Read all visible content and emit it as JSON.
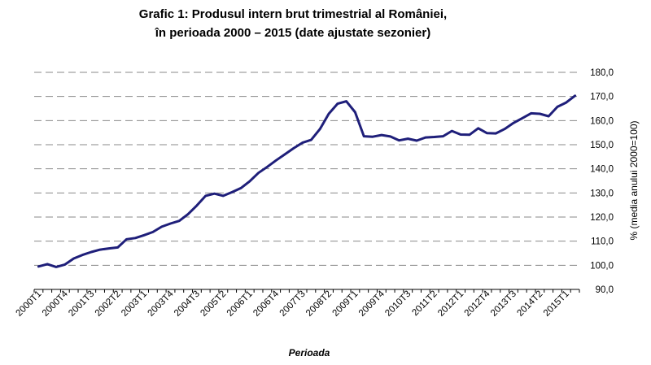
{
  "chart_data": {
    "type": "line",
    "title_line1": "Grafic 1: Produsul intern brut trimestrial al României,",
    "title_line2": "în perioada 2000 – 2015 (date ajustate sezonier)",
    "xlabel": "Perioada",
    "ylabel": "% (media anului 2000=100)",
    "ylim": [
      90,
      180
    ],
    "ytick_values": [
      90,
      100,
      110,
      120,
      130,
      140,
      150,
      160,
      170,
      180
    ],
    "ytick_labels": [
      "90,0",
      "100,0",
      "110,0",
      "120,0",
      "130,0",
      "140,0",
      "150,0",
      "160,0",
      "170,0",
      "180,0"
    ],
    "y_axis_position": "right",
    "grid": "horizontal dashed",
    "line_color": "#1f1f7a",
    "x_tick_labels": [
      "2000T1",
      "2000T4",
      "2001T3",
      "2002T2",
      "2003T1",
      "2003T4",
      "2004T3",
      "2005T2",
      "2006T1",
      "2006T4",
      "2007T3",
      "2008T2",
      "2009T1",
      "2009T4",
      "2010T3",
      "2011T2",
      "2012T1",
      "2012T4",
      "2013T3",
      "2014T2",
      "2015T1"
    ],
    "x": [
      "2000T1",
      "2000T2",
      "2000T3",
      "2000T4",
      "2001T1",
      "2001T2",
      "2001T3",
      "2001T4",
      "2002T1",
      "2002T2",
      "2002T3",
      "2002T4",
      "2003T1",
      "2003T2",
      "2003T3",
      "2003T4",
      "2004T1",
      "2004T2",
      "2004T3",
      "2004T4",
      "2005T1",
      "2005T2",
      "2005T3",
      "2005T4",
      "2006T1",
      "2006T2",
      "2006T3",
      "2006T4",
      "2007T1",
      "2007T2",
      "2007T3",
      "2007T4",
      "2008T1",
      "2008T2",
      "2008T3",
      "2008T4",
      "2009T1",
      "2009T2",
      "2009T3",
      "2009T4",
      "2010T1",
      "2010T2",
      "2010T3",
      "2010T4",
      "2011T1",
      "2011T2",
      "2011T3",
      "2011T4",
      "2012T1",
      "2012T2",
      "2012T3",
      "2012T4",
      "2013T1",
      "2013T2",
      "2013T3",
      "2013T4",
      "2014T1",
      "2014T2",
      "2014T3",
      "2014T4",
      "2015T1",
      "2015T2"
    ],
    "series": [
      {
        "values": [
          99.5,
          100.5,
          99.3,
          100.3,
          102.8,
          104.3,
          105.5,
          106.5,
          107.0,
          107.4,
          110.8,
          111.3,
          112.5,
          113.8,
          116.0,
          117.3,
          118.4,
          121.2,
          124.8,
          128.8,
          129.7,
          128.8,
          130.3,
          132.0,
          134.8,
          138.3,
          140.8,
          143.5,
          146.0,
          148.5,
          150.8,
          152.0,
          156.5,
          162.8,
          167.0,
          168.0,
          163.5,
          153.5,
          153.3,
          154.0,
          153.4,
          151.8,
          152.5,
          151.7,
          153.0,
          153.2,
          153.5,
          155.7,
          154.2,
          154.1,
          156.8,
          154.8,
          154.7,
          156.5,
          159.0,
          161.0,
          163.0,
          162.8,
          161.8,
          165.7,
          167.5,
          170.3
        ]
      }
    ]
  }
}
